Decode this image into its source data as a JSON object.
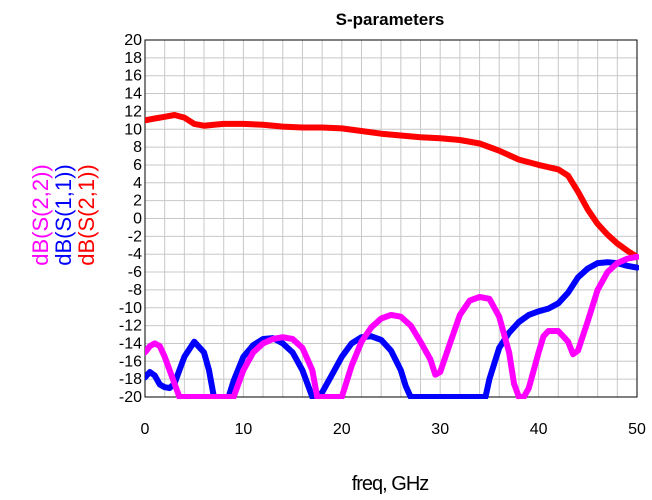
{
  "chart_data": {
    "type": "line",
    "title": "S-parameters",
    "xlabel": "freq, GHz",
    "ylabel": "",
    "xlim": [
      0,
      50
    ],
    "ylim": [
      -20,
      20
    ],
    "x_ticks": [
      "0",
      "10",
      "20",
      "30",
      "40",
      "50"
    ],
    "y_ticks": [
      "20",
      "18",
      "16",
      "14",
      "12",
      "10",
      "8",
      "6",
      "4",
      "2",
      "0",
      "-2",
      "-4",
      "-6",
      "-8",
      "-10",
      "-12",
      "-14",
      "-16",
      "-18",
      "-20"
    ],
    "grid": true,
    "legend_position": "left, rotated vertical",
    "series": [
      {
        "name": "dB(S(2,1))",
        "color": "#ff0000",
        "x": [
          0,
          1,
          2,
          3,
          4,
          5,
          6,
          7,
          8,
          10,
          12,
          14,
          16,
          18,
          20,
          22,
          24,
          26,
          28,
          30,
          32,
          34,
          36,
          38,
          40,
          42,
          43,
          44,
          45,
          46,
          47,
          48,
          49,
          50
        ],
        "y": [
          11.0,
          11.2,
          11.4,
          11.6,
          11.3,
          10.6,
          10.4,
          10.5,
          10.6,
          10.6,
          10.5,
          10.3,
          10.2,
          10.2,
          10.1,
          9.8,
          9.5,
          9.3,
          9.1,
          9.0,
          8.8,
          8.4,
          7.6,
          6.6,
          6.0,
          5.5,
          4.8,
          3.0,
          1.0,
          -0.6,
          -1.8,
          -2.8,
          -3.6,
          -4.3
        ]
      },
      {
        "name": "dB(S(1,1))",
        "color": "#0000ff",
        "x": [
          0,
          0.5,
          1,
          1.5,
          2,
          2.5,
          3,
          3.5,
          4,
          5,
          6,
          6.5,
          7,
          8.5,
          9,
          10,
          11,
          12,
          13,
          14,
          15,
          16,
          16.5,
          17,
          17.5,
          18,
          19,
          20,
          21,
          22,
          23,
          24,
          25,
          26,
          26.5,
          27,
          27.5,
          34.6,
          35,
          36,
          37,
          38,
          39,
          40,
          41,
          42,
          43,
          44,
          45,
          46,
          47,
          48,
          49,
          50
        ],
        "y": [
          -17.8,
          -17.2,
          -17.6,
          -18.6,
          -18.9,
          -19.0,
          -18.5,
          -17.0,
          -15.5,
          -13.8,
          -15.0,
          -17.0,
          -20,
          -20,
          -18.2,
          -15.5,
          -14.2,
          -13.5,
          -13.4,
          -14.0,
          -15.0,
          -17.0,
          -18.5,
          -20,
          -20,
          -19.5,
          -17.5,
          -15.5,
          -14.0,
          -13.3,
          -13.2,
          -13.6,
          -14.8,
          -17.0,
          -18.8,
          -20,
          -20,
          -20,
          -18.0,
          -14.5,
          -12.8,
          -11.6,
          -10.8,
          -10.4,
          -10.1,
          -9.5,
          -8.3,
          -6.6,
          -5.6,
          -5.0,
          -4.9,
          -5.0,
          -5.3,
          -5.5
        ]
      },
      {
        "name": "dB(S(2,2))",
        "color": "#ff00ff",
        "x": [
          0,
          0.5,
          1,
          1.5,
          2,
          2.5,
          3,
          3.5,
          9,
          10,
          11,
          12,
          13,
          14,
          15,
          16,
          17,
          17.5,
          20,
          21,
          22,
          23,
          24,
          25,
          26,
          27,
          28,
          29,
          29.5,
          30,
          31,
          32,
          33,
          34,
          35,
          36,
          37,
          37.5,
          38,
          38.5,
          39,
          40,
          40.5,
          41,
          42,
          43,
          43.5,
          44,
          45,
          46,
          47,
          48,
          49,
          50
        ],
        "y": [
          -15.0,
          -14.3,
          -14.0,
          -14.3,
          -15.5,
          -17.0,
          -18.5,
          -20,
          -20,
          -17.0,
          -15.0,
          -14.0,
          -13.5,
          -13.3,
          -13.5,
          -14.5,
          -17.0,
          -20,
          -20,
          -16.5,
          -13.8,
          -12.2,
          -11.2,
          -10.8,
          -11.0,
          -12.0,
          -13.8,
          -15.8,
          -17.5,
          -17.2,
          -14.0,
          -10.8,
          -9.2,
          -8.8,
          -9.0,
          -11.0,
          -15.0,
          -18.5,
          -20,
          -20,
          -19.0,
          -15.0,
          -13.2,
          -12.6,
          -12.6,
          -13.8,
          -15.2,
          -14.8,
          -11.5,
          -8.0,
          -6.0,
          -5.0,
          -4.5,
          -4.3
        ]
      }
    ]
  }
}
